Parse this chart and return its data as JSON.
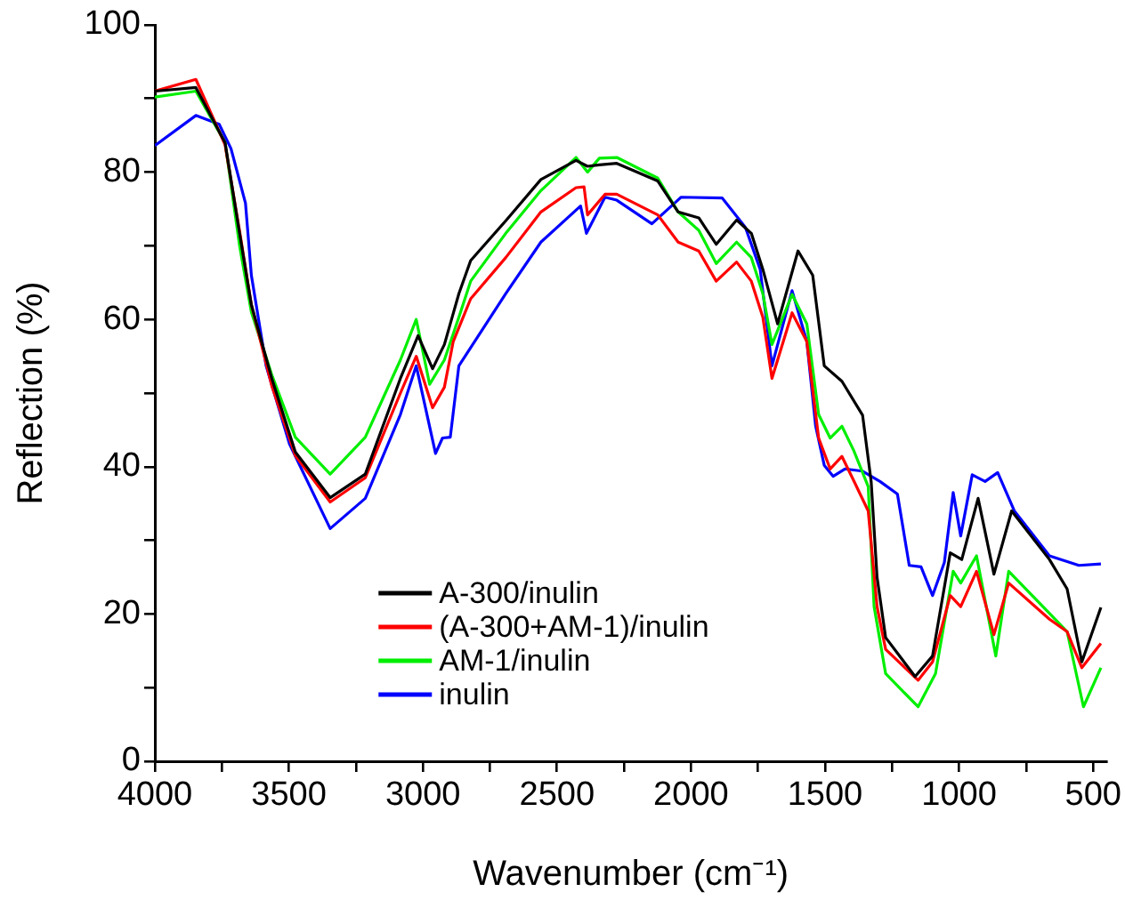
{
  "chart_data": {
    "type": "line",
    "xlabel": "Wavenumber (cm⁻¹)",
    "ylabel": "Reflection (%)",
    "xlim": [
      4000,
      450
    ],
    "xticks": [
      4000,
      {
        "value": 3750,
        "label": null
      },
      3500,
      {
        "value": 3250,
        "label": null
      },
      3000,
      {
        "value": 2750,
        "label": null
      },
      2500,
      {
        "value": 2250,
        "label": null
      },
      2000,
      {
        "value": 1750,
        "label": null
      },
      1500,
      {
        "value": 1250,
        "label": null
      },
      1000,
      {
        "value": 750,
        "label": null
      },
      500
    ],
    "ylim": [
      0,
      100
    ],
    "yticks": [
      0,
      {
        "value": 10,
        "label": null
      },
      20,
      {
        "value": 30,
        "label": null
      },
      40,
      {
        "value": 50,
        "label": null
      },
      60,
      {
        "value": 70,
        "label": null
      },
      80,
      {
        "value": 90,
        "label": null
      },
      100
    ],
    "grid": false,
    "legend": "bottom",
    "marker": "none",
    "line_style": "solid",
    "series": [
      {
        "name": "A-300/inulin",
        "color": "#000000",
        "x": [
          4000,
          3847,
          3738,
          3684,
          3640,
          3564,
          3476,
          3346,
          3215,
          3084,
          3018,
          2964,
          2920,
          2866,
          2822,
          2691,
          2560,
          2429,
          2386,
          2342,
          2277,
          2124,
          2048,
          1971,
          1906,
          1830,
          1775,
          1732,
          1677,
          1601,
          1546,
          1503,
          1437,
          1360,
          1328,
          1306,
          1274,
          1164,
          1099,
          1033,
          990,
          929,
          870,
          804,
          663,
          597,
          542,
          471
        ],
        "values": [
          91,
          91.5,
          84,
          71.7,
          62,
          52,
          42,
          35.8,
          39,
          52,
          57.8,
          53.3,
          56.6,
          63.5,
          68,
          73.4,
          79,
          81.6,
          80.8,
          81,
          81.2,
          78.8,
          74.6,
          73.8,
          70.2,
          73.5,
          71.7,
          66.8,
          59.4,
          69.3,
          66,
          53.7,
          51.6,
          47,
          38,
          25,
          16.8,
          11.5,
          14.3,
          28.3,
          27.4,
          35.7,
          25.4,
          34,
          27.4,
          23.4,
          13.5,
          20.9
        ]
      },
      {
        "name": "(A-300+AM-1)/inulin",
        "color": "#ff0000",
        "x": [
          4000,
          3847,
          3738,
          3684,
          3640,
          3564,
          3476,
          3346,
          3215,
          3084,
          3025,
          2964,
          2920,
          2887,
          2822,
          2691,
          2560,
          2429,
          2399,
          2386,
          2321,
          2277,
          2124,
          2048,
          1971,
          1906,
          1830,
          1775,
          1732,
          1698,
          1623,
          1568,
          1524,
          1481,
          1437,
          1393,
          1339,
          1306,
          1274,
          1153,
          1099,
          1033,
          994,
          935,
          870,
          815,
          663,
          597,
          542,
          471
        ],
        "values": [
          91,
          92.6,
          83.7,
          72,
          62,
          51,
          41.5,
          35.2,
          38.5,
          50,
          55,
          48,
          50.8,
          57,
          62.8,
          68.4,
          74.6,
          77.9,
          78,
          74.2,
          77,
          77,
          74.2,
          70.5,
          69.3,
          65.2,
          67.8,
          65.2,
          60.3,
          52,
          60.9,
          57,
          43.9,
          39.7,
          41.4,
          38.1,
          34,
          21,
          15.2,
          11,
          13.5,
          22.5,
          21,
          25.8,
          17.2,
          24.2,
          19.3,
          17.6,
          12.7,
          16
        ]
      },
      {
        "name": "AM-1/inulin",
        "color": "#00ee00",
        "x": [
          4000,
          3847,
          3738,
          3684,
          3640,
          3564,
          3476,
          3346,
          3215,
          3084,
          3025,
          2975,
          2920,
          2866,
          2822,
          2691,
          2560,
          2429,
          2386,
          2342,
          2277,
          2124,
          2048,
          1971,
          1906,
          1830,
          1775,
          1732,
          1698,
          1623,
          1568,
          1524,
          1481,
          1437,
          1393,
          1339,
          1317,
          1274,
          1153,
          1088,
          1022,
          994,
          935,
          863,
          815,
          663,
          597,
          536,
          471
        ],
        "values": [
          90.2,
          91,
          84,
          70,
          61,
          52.5,
          44,
          39,
          44,
          54.5,
          60,
          51.2,
          54.5,
          60.3,
          65.2,
          71.7,
          77.5,
          82,
          80,
          81.9,
          82,
          79.2,
          74.6,
          72.1,
          67.6,
          70.5,
          68.4,
          63.5,
          56.6,
          63.4,
          59.4,
          47.1,
          43.9,
          45.5,
          42.2,
          37.3,
          21,
          11.9,
          7.4,
          11.9,
          25.8,
          24.2,
          27.9,
          14.3,
          25.8,
          20.1,
          17.6,
          7.4,
          12.7
        ]
      },
      {
        "name": "inulin",
        "color": "#0000ff",
        "x": [
          4000,
          3847,
          3760,
          3716,
          3662,
          3640,
          3585,
          3498,
          3346,
          3215,
          3084,
          3025,
          2953,
          2927,
          2898,
          2866,
          2691,
          2560,
          2412,
          2390,
          2321,
          2277,
          2146,
          2037,
          1884,
          1797,
          1742,
          1698,
          1623,
          1568,
          1535,
          1503,
          1470,
          1426,
          1360,
          1295,
          1230,
          1186,
          1142,
          1099,
          1055,
          1022,
          994,
          951,
          903,
          856,
          794,
          663,
          553,
          471
        ],
        "values": [
          83.6,
          87.7,
          86.5,
          83.2,
          75.8,
          66,
          53.7,
          43.1,
          31.6,
          35.7,
          47.1,
          53.7,
          41.8,
          43.9,
          44,
          53.7,
          63.5,
          70.5,
          75.4,
          71.7,
          76.6,
          76.2,
          73,
          76.6,
          76.5,
          72.5,
          66.8,
          53.7,
          63.9,
          57,
          45.5,
          40.2,
          38.7,
          39.7,
          39.4,
          38,
          36.3,
          26.6,
          26.4,
          22.5,
          27,
          36.5,
          30.6,
          38.9,
          38,
          39.2,
          34,
          27.9,
          26.6,
          26.8
        ]
      }
    ]
  }
}
